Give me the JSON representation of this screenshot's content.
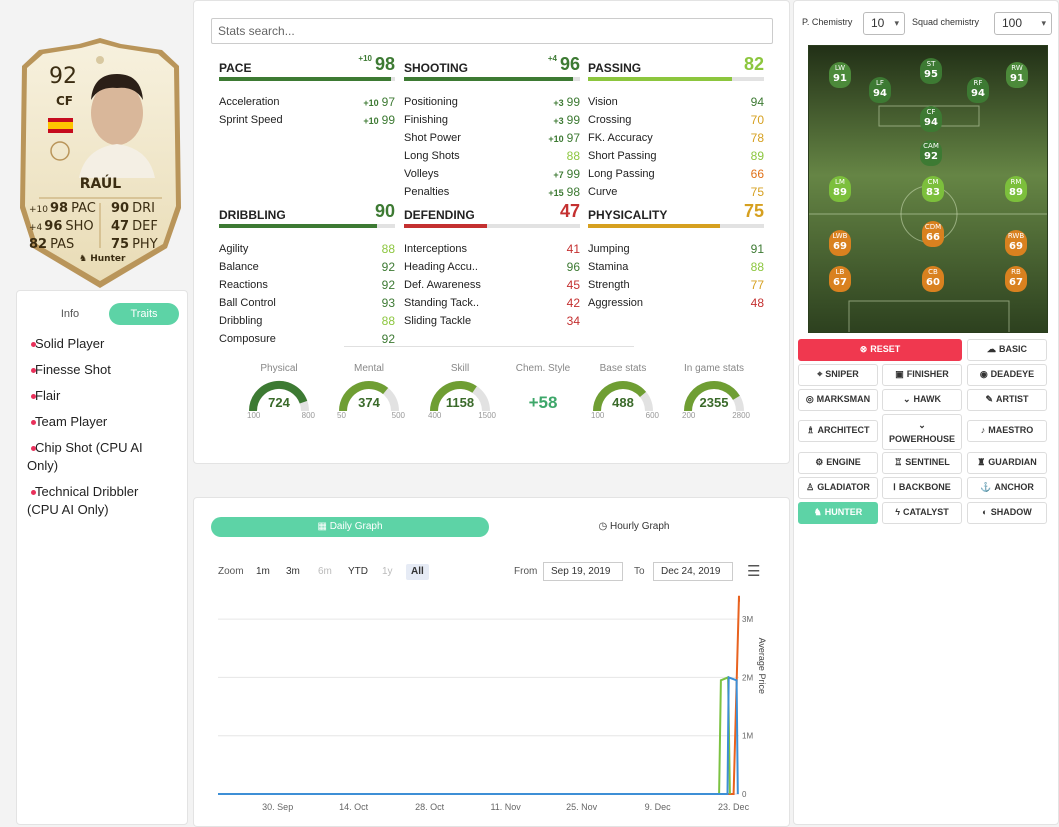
{
  "card": {
    "rating": "92",
    "position": "CF",
    "name": "RAÚL",
    "chem_style": "Hunter",
    "stats": [
      {
        "boost": "+10",
        "val": "98",
        "lbl": "PAC"
      },
      {
        "boost": "+4",
        "val": "96",
        "lbl": "SHO"
      },
      {
        "boost": "",
        "val": "82",
        "lbl": "PAS"
      },
      {
        "boost": "",
        "val": "90",
        "lbl": "DRI"
      },
      {
        "boost": "",
        "val": "47",
        "lbl": "DEF"
      },
      {
        "boost": "",
        "val": "75",
        "lbl": "PHY"
      }
    ]
  },
  "info_tabs": {
    "info": "Info",
    "traits": "Traits"
  },
  "traits": [
    {
      "l1": "Solid Player",
      "l2": ""
    },
    {
      "l1": "Finesse Shot",
      "l2": ""
    },
    {
      "l1": "Flair",
      "l2": ""
    },
    {
      "l1": "Team Player",
      "l2": ""
    },
    {
      "l1": "Chip Shot (CPU AI",
      "l2": "Only)"
    },
    {
      "l1": "Technical Dribbler",
      "l2": "(CPU AI Only)"
    }
  ],
  "search": {
    "placeholder": "Stats search..."
  },
  "categories": [
    {
      "name": "PACE",
      "boost": "+10",
      "value": "98",
      "fill": 0.98,
      "color": "#3d7a33",
      "rows": [
        {
          "name": "Acceleration",
          "boost": "+10",
          "val": "97",
          "c": "g"
        },
        {
          "name": "Sprint Speed",
          "boost": "+10",
          "val": "99",
          "c": "g"
        }
      ]
    },
    {
      "name": "SHOOTING",
      "boost": "+4",
      "value": "96",
      "fill": 0.96,
      "color": "#3d7a33",
      "rows": [
        {
          "name": "Positioning",
          "boost": "+3",
          "val": "99",
          "c": "g"
        },
        {
          "name": "Finishing",
          "boost": "+3",
          "val": "99",
          "c": "g"
        },
        {
          "name": "Shot Power",
          "boost": "+10",
          "val": "97",
          "c": "g"
        },
        {
          "name": "Long Shots",
          "boost": "",
          "val": "88",
          "c": "lg"
        },
        {
          "name": "Volleys",
          "boost": "+7",
          "val": "99",
          "c": "g"
        },
        {
          "name": "Penalties",
          "boost": "+15",
          "val": "98",
          "c": "g"
        }
      ]
    },
    {
      "name": "PASSING",
      "boost": "",
      "value": "82",
      "fill": 0.82,
      "color": "#8cc63e",
      "rows": [
        {
          "name": "Vision",
          "boost": "",
          "val": "94",
          "c": "g"
        },
        {
          "name": "Crossing",
          "boost": "",
          "val": "70",
          "c": "y"
        },
        {
          "name": "FK. Accuracy",
          "boost": "",
          "val": "78",
          "c": "y"
        },
        {
          "name": "Short Passing",
          "boost": "",
          "val": "89",
          "c": "lg"
        },
        {
          "name": "Long Passing",
          "boost": "",
          "val": "66",
          "c": "o"
        },
        {
          "name": "Curve",
          "boost": "",
          "val": "75",
          "c": "y"
        }
      ]
    },
    {
      "name": "DRIBBLING",
      "boost": "",
      "value": "90",
      "fill": 0.9,
      "color": "#3d7a33",
      "rows": [
        {
          "name": "Agility",
          "boost": "",
          "val": "88",
          "c": "lg"
        },
        {
          "name": "Balance",
          "boost": "",
          "val": "92",
          "c": "g"
        },
        {
          "name": "Reactions",
          "boost": "",
          "val": "92",
          "c": "g"
        },
        {
          "name": "Ball Control",
          "boost": "",
          "val": "93",
          "c": "g"
        },
        {
          "name": "Dribbling",
          "boost": "",
          "val": "88",
          "c": "lg"
        },
        {
          "name": "Composure",
          "boost": "",
          "val": "92",
          "c": "g"
        }
      ]
    },
    {
      "name": "DEFENDING",
      "boost": "",
      "value": "47",
      "fill": 0.47,
      "color": "#c43030",
      "rows": [
        {
          "name": "Interceptions",
          "boost": "",
          "val": "41",
          "c": "r"
        },
        {
          "name": "Heading Accu..",
          "boost": "",
          "val": "96",
          "c": "g"
        },
        {
          "name": "Def. Awareness",
          "boost": "",
          "val": "45",
          "c": "r"
        },
        {
          "name": "Standing Tack..",
          "boost": "",
          "val": "42",
          "c": "r"
        },
        {
          "name": "Sliding Tackle",
          "boost": "",
          "val": "34",
          "c": "r"
        }
      ]
    },
    {
      "name": "PHYSICALITY",
      "boost": "",
      "value": "75",
      "fill": 0.75,
      "color": "#d6a020",
      "rows": [
        {
          "name": "Jumping",
          "boost": "",
          "val": "91",
          "c": "g"
        },
        {
          "name": "Stamina",
          "boost": "",
          "val": "88",
          "c": "lg"
        },
        {
          "name": "Strength",
          "boost": "",
          "val": "77",
          "c": "y"
        },
        {
          "name": "Aggression",
          "boost": "",
          "val": "48",
          "c": "r"
        }
      ]
    }
  ],
  "gauges": [
    {
      "label": "Physical",
      "value": "724",
      "min": "100",
      "max": "800",
      "frac": 0.89,
      "color": "#3d7a33"
    },
    {
      "label": "Mental",
      "value": "374",
      "min": "50",
      "max": "500",
      "frac": 0.72,
      "color": "#6f9e33"
    },
    {
      "label": "Skill",
      "value": "1158",
      "min": "400",
      "max": "1500",
      "frac": 0.69,
      "color": "#6f9e33"
    },
    {
      "label": "Base stats",
      "value": "488",
      "min": "100",
      "max": "600",
      "frac": 0.78,
      "color": "#6f9e33"
    },
    {
      "label": "In game stats",
      "value": "2355",
      "min": "200",
      "max": "2800",
      "frac": 0.83,
      "color": "#6f9e33"
    }
  ],
  "chem_style_stat": {
    "label": "Chem. Style",
    "value": "+58"
  },
  "graph": {
    "daily": "Daily Graph",
    "hourly": "Hourly Graph",
    "zoom_label": "Zoom",
    "zoom": [
      "1m",
      "3m",
      "6m",
      "YTD",
      "1y",
      "All"
    ],
    "from_label": "From",
    "from": "Sep 19, 2019",
    "to_label": "To",
    "to": "Dec 24, 2019",
    "menu_icon": "hamburger-icon"
  },
  "chart_data": {
    "type": "line",
    "ylabel": "Average Price",
    "x_ticks": [
      "30. Sep",
      "14. Oct",
      "28. Oct",
      "11. Nov",
      "25. Nov",
      "9. Dec",
      "23. Dec"
    ],
    "y_ticks": [
      "0",
      "1M",
      "2M",
      "3M"
    ],
    "series": [
      {
        "color": "#e8621f",
        "x": [
          "Sep 19",
          "Dec 23",
          "Dec 23",
          "Dec 24",
          "Dec 24"
        ],
        "values": [
          0,
          0,
          0,
          3.4,
          3.3
        ]
      },
      {
        "color": "#7cc242",
        "x": [
          "Sep 19",
          "Dec 21",
          "Dec 21",
          "Dec 22",
          "Dec 22"
        ],
        "values": [
          0,
          0,
          1.95,
          2.0,
          0
        ]
      },
      {
        "color": "#3d8fd6",
        "x": [
          "Sep 19",
          "Dec 22",
          "Dec 22",
          "Dec 23",
          "Dec 23"
        ],
        "values": [
          0,
          0,
          2.0,
          1.95,
          0
        ]
      }
    ]
  },
  "chem": {
    "p_label": "P. Chemistry",
    "p_value": "10",
    "squad_label": "Squad chemistry",
    "squad_value": "100"
  },
  "pitch": [
    {
      "p": "LW",
      "n": "91",
      "c": "#4c8a3a"
    },
    {
      "p": "ST",
      "n": "95",
      "c": "#3d7a33"
    },
    {
      "p": "RW",
      "n": "91",
      "c": "#4c8a3a"
    },
    {
      "p": "LF",
      "n": "94",
      "c": "#3d7a33"
    },
    {
      "p": "RF",
      "n": "94",
      "c": "#3d7a33"
    },
    {
      "p": "CF",
      "n": "94",
      "c": "#3d7a33"
    },
    {
      "p": "CAM",
      "n": "92",
      "c": "#3d7a33"
    },
    {
      "p": "LM",
      "n": "89",
      "c": "#7cbf3c"
    },
    {
      "p": "CM",
      "n": "83",
      "c": "#7cbf3c"
    },
    {
      "p": "RM",
      "n": "89",
      "c": "#7cbf3c"
    },
    {
      "p": "CDM",
      "n": "66",
      "c": "#d9811f"
    },
    {
      "p": "LWB",
      "n": "69",
      "c": "#d9811f"
    },
    {
      "p": "RWB",
      "n": "69",
      "c": "#d9811f"
    },
    {
      "p": "LB",
      "n": "67",
      "c": "#d9811f"
    },
    {
      "p": "CB",
      "n": "60",
      "c": "#d9811f"
    },
    {
      "p": "RB",
      "n": "67",
      "c": "#d9811f"
    }
  ],
  "chem_buttons": {
    "reset": "RESET",
    "basic": "BASIC",
    "sniper": "SNIPER",
    "finisher": "FINISHER",
    "deadeye": "DEADEYE",
    "marksman": "MARKSMAN",
    "hawk": "HAWK",
    "artist": "ARTIST",
    "architect": "ARCHITECT",
    "powerhouse": "POWERHOUSE",
    "maestro": "MAESTRO",
    "engine": "ENGINE",
    "sentinel": "SENTINEL",
    "guardian": "GUARDIAN",
    "gladiator": "GLADIATOR",
    "backbone": "BACKBONE",
    "anchor": "ANCHOR",
    "hunter": "HUNTER",
    "catalyst": "CATALYST",
    "shadow": "SHADOW"
  },
  "colors": {
    "accent": "#5dd3a6",
    "reset": "#f0384f",
    "pitch": "#3f5a2a"
  }
}
